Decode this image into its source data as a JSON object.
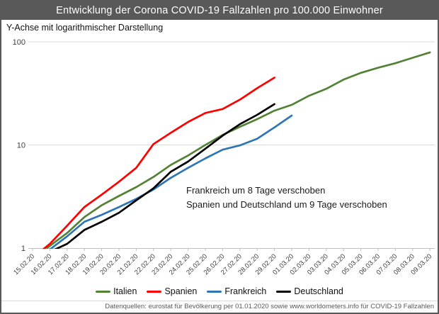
{
  "header": {
    "title": "Entwicklung der Corona COVID-19 Fallzahlen pro 100.000 Einwohner"
  },
  "chart_data": {
    "type": "line",
    "subtitle": "Y-Achse mit logarithmischer Darstellung",
    "y_scale": "log",
    "ylim": [
      1,
      100
    ],
    "y_ticks": [
      "1",
      "10",
      "100"
    ],
    "grid": "horizontal",
    "legend_position": "bottom",
    "categories": [
      "15.02.20",
      "16.02.20",
      "17.02.20",
      "18.02.20",
      "19.02.20",
      "20.02.20",
      "21.02.20",
      "22.02.20",
      "23.02.20",
      "24.02.20",
      "25.02.20",
      "26.02.20",
      "27.02.20",
      "28.02.20",
      "29.02.20",
      "01.03.20",
      "02.03.20",
      "03.03.20",
      "04.03.20",
      "05.03.20",
      "06.03.20",
      "07.03.20",
      "08.03.20",
      "09.03.20"
    ],
    "series": [
      {
        "name": "Italien",
        "color": "#548235",
        "values": [
          0.78,
          1.05,
          1.4,
          2.0,
          2.6,
          3.2,
          3.9,
          4.9,
          6.4,
          7.9,
          10,
          12.5,
          15,
          17.8,
          21.5,
          24.5,
          30,
          35,
          43,
          50,
          56,
          62,
          70,
          79
        ]
      },
      {
        "name": "Spanien",
        "color": "#FF0000",
        "values": [
          0.8,
          1.1,
          1.65,
          2.5,
          3.3,
          4.4,
          6.0,
          10.2,
          13.1,
          16.7,
          20.4,
          22.3,
          27.5,
          35.5,
          45,
          null,
          null,
          null,
          null,
          null,
          null,
          null,
          null,
          null
        ]
      },
      {
        "name": "Frankreich",
        "color": "#2E75B6",
        "values": [
          null,
          0.97,
          1.3,
          1.8,
          2.1,
          2.5,
          3.0,
          3.7,
          4.8,
          6.0,
          7.4,
          9.0,
          9.9,
          11.5,
          14.8,
          19.3,
          null,
          null,
          null,
          null,
          null,
          null,
          null,
          null
        ]
      },
      {
        "name": "Deutschland",
        "color": "#000000",
        "values": [
          null,
          0.92,
          1.1,
          1.5,
          1.8,
          2.2,
          2.9,
          3.8,
          5.5,
          6.9,
          9.2,
          12.3,
          15.9,
          19.6,
          24.9,
          null,
          null,
          null,
          null,
          null,
          null,
          null,
          null,
          null
        ]
      }
    ],
    "annotation": {
      "line1": "Frankreich um 8 Tage verschoben",
      "line2": "Spanien und Deutschland um 9 Tage verschoben"
    }
  },
  "footer": {
    "text": "Datenquellen: eurostat für Bevölkerung per 01.01.2020 sowie www.worldometers.info für COVID-19 Fallzahlen"
  },
  "colors": {
    "title_bar": "#595959",
    "frame": "#595959",
    "grid": "#D9D9D9",
    "axis": "#BFBFBF",
    "tick_label": "#404040",
    "footer_text": "#595959"
  }
}
